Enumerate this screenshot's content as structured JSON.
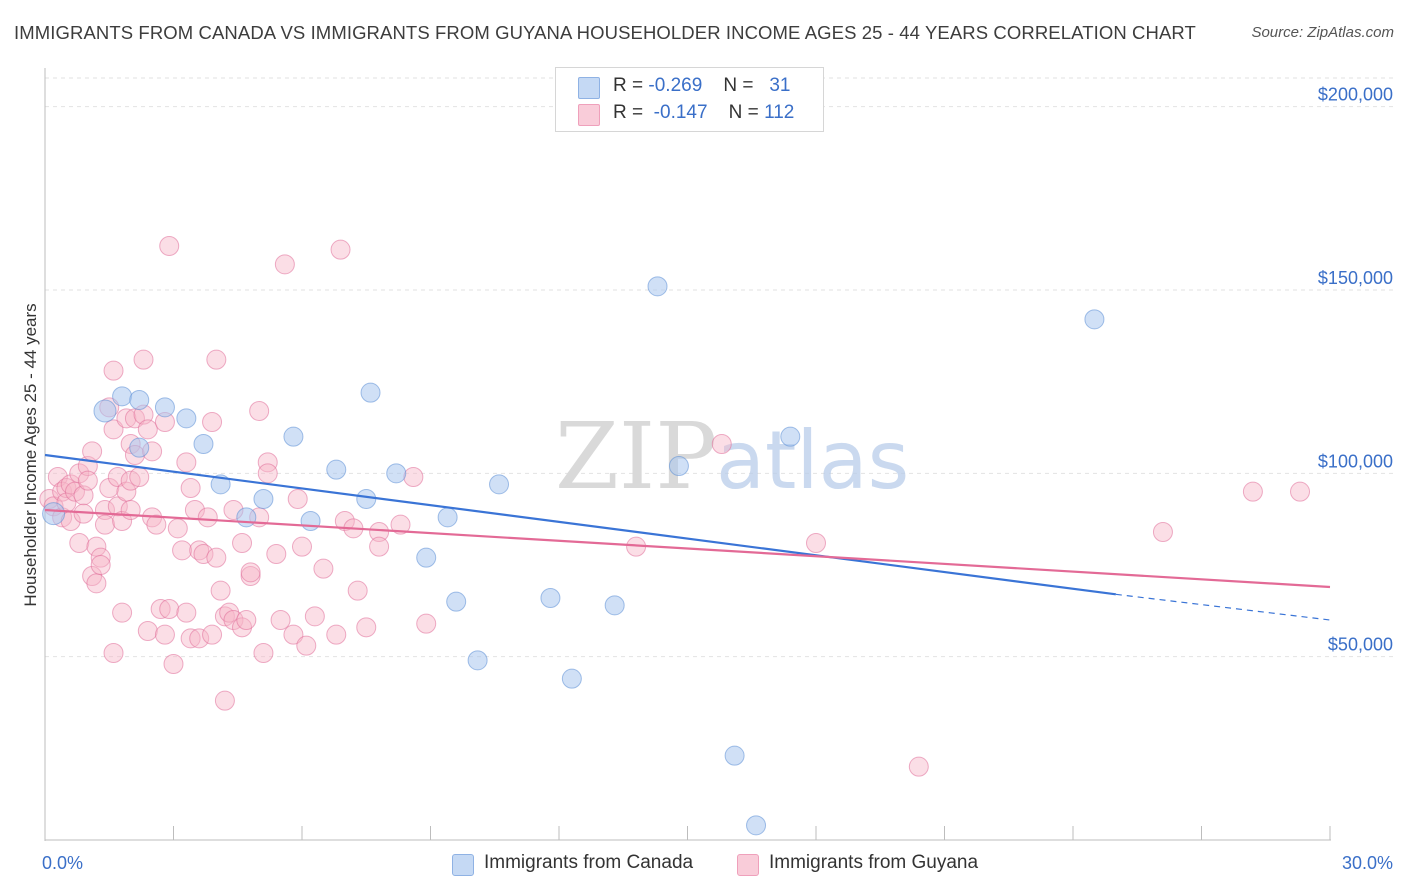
{
  "title": "IMMIGRANTS FROM CANADA VS IMMIGRANTS FROM GUYANA HOUSEHOLDER INCOME AGES 25 - 44 YEARS CORRELATION CHART",
  "source": "Source: ZipAtlas.com",
  "watermark": {
    "zip": "ZIP",
    "atlas": "atlas"
  },
  "legend": {
    "rows": [
      {
        "r_label": "R =",
        "r_value": "-0.269",
        "n_label": "N =",
        "n_value": "31",
        "color": "#a9c6ef"
      },
      {
        "r_label": "R =",
        "r_value": "-0.147",
        "n_label": "N =",
        "n_value": "112",
        "color": "#f6b6c8"
      }
    ]
  },
  "bottom_legend": [
    {
      "label": "Immigrants from Canada",
      "color": "#a9c6ef"
    },
    {
      "label": "Immigrants from Guyana",
      "color": "#f6b6c8"
    }
  ],
  "chart_data": {
    "type": "scatter",
    "xlabel": "",
    "ylabel": "Householder Income Ages 25 - 44 years",
    "xlim": [
      0,
      30
    ],
    "ylim": [
      0,
      210000
    ],
    "x_tick_labels": [
      "0.0%",
      "30.0%"
    ],
    "y_ticks": [
      50000,
      100000,
      150000,
      200000
    ],
    "y_tick_labels": [
      "$50,000",
      "$100,000",
      "$150,000",
      "$200,000"
    ],
    "grid": "horizontal dashed",
    "series": [
      {
        "name": "Immigrants from Canada",
        "color": "#5b8ed6",
        "fill": "#a9c6ef",
        "points": [
          [
            0.2,
            89000
          ],
          [
            1.4,
            117000
          ],
          [
            1.8,
            121000
          ],
          [
            2.2,
            120000
          ],
          [
            2.2,
            107000
          ],
          [
            2.8,
            118000
          ],
          [
            3.3,
            115000
          ],
          [
            3.7,
            108000
          ],
          [
            4.1,
            97000
          ],
          [
            4.7,
            88000
          ],
          [
            5.1,
            93000
          ],
          [
            5.8,
            110000
          ],
          [
            6.2,
            87000
          ],
          [
            6.8,
            101000
          ],
          [
            7.5,
            93000
          ],
          [
            7.6,
            122000
          ],
          [
            8.2,
            100000
          ],
          [
            8.9,
            77000
          ],
          [
            9.4,
            88000
          ],
          [
            9.6,
            65000
          ],
          [
            10.1,
            49000
          ],
          [
            10.6,
            97000
          ],
          [
            11.8,
            66000
          ],
          [
            12.3,
            44000
          ],
          [
            13.3,
            64000
          ],
          [
            14.3,
            151000
          ],
          [
            14.8,
            102000
          ],
          [
            16.1,
            23000
          ],
          [
            16.6,
            4000
          ],
          [
            17.4,
            110000
          ],
          [
            24.5,
            142000
          ]
        ],
        "trend": {
          "x": [
            0,
            25,
            30
          ],
          "y": [
            105000,
            67000,
            60000
          ],
          "solid_until": 25
        }
      },
      {
        "name": "Immigrants from Guyana",
        "color": "#e06e99",
        "fill": "#f6b6c8",
        "points": [
          [
            0.1,
            93000
          ],
          [
            0.2,
            91000
          ],
          [
            0.3,
            99000
          ],
          [
            0.4,
            95000
          ],
          [
            0.4,
            88000
          ],
          [
            0.5,
            96000
          ],
          [
            0.5,
            92000
          ],
          [
            0.6,
            97000
          ],
          [
            0.6,
            87000
          ],
          [
            0.7,
            95000
          ],
          [
            0.8,
            81000
          ],
          [
            0.8,
            100000
          ],
          [
            0.9,
            94000
          ],
          [
            0.9,
            89000
          ],
          [
            1.0,
            102000
          ],
          [
            1.0,
            98000
          ],
          [
            1.1,
            106000
          ],
          [
            1.1,
            72000
          ],
          [
            1.2,
            80000
          ],
          [
            1.2,
            70000
          ],
          [
            1.3,
            77000
          ],
          [
            1.3,
            75000
          ],
          [
            1.4,
            90000
          ],
          [
            1.4,
            86000
          ],
          [
            1.5,
            96000
          ],
          [
            1.5,
            118000
          ],
          [
            1.6,
            112000
          ],
          [
            1.6,
            128000
          ],
          [
            1.6,
            51000
          ],
          [
            1.7,
            91000
          ],
          [
            1.7,
            99000
          ],
          [
            1.8,
            87000
          ],
          [
            1.8,
            62000
          ],
          [
            1.9,
            115000
          ],
          [
            1.9,
            95000
          ],
          [
            2.0,
            108000
          ],
          [
            2.0,
            98000
          ],
          [
            2.0,
            90000
          ],
          [
            2.1,
            105000
          ],
          [
            2.1,
            115000
          ],
          [
            2.2,
            99000
          ],
          [
            2.3,
            131000
          ],
          [
            2.3,
            116000
          ],
          [
            2.4,
            112000
          ],
          [
            2.4,
            57000
          ],
          [
            2.5,
            106000
          ],
          [
            2.5,
            88000
          ],
          [
            2.6,
            86000
          ],
          [
            2.7,
            63000
          ],
          [
            2.8,
            114000
          ],
          [
            2.8,
            56000
          ],
          [
            2.9,
            162000
          ],
          [
            2.9,
            63000
          ],
          [
            3.0,
            48000
          ],
          [
            3.1,
            85000
          ],
          [
            3.2,
            79000
          ],
          [
            3.3,
            62000
          ],
          [
            3.3,
            103000
          ],
          [
            3.4,
            96000
          ],
          [
            3.4,
            55000
          ],
          [
            3.5,
            90000
          ],
          [
            3.6,
            79000
          ],
          [
            3.6,
            55000
          ],
          [
            3.7,
            78000
          ],
          [
            3.8,
            88000
          ],
          [
            3.9,
            114000
          ],
          [
            3.9,
            56000
          ],
          [
            4.0,
            131000
          ],
          [
            4.0,
            77000
          ],
          [
            4.1,
            68000
          ],
          [
            4.2,
            61000
          ],
          [
            4.2,
            38000
          ],
          [
            4.3,
            62000
          ],
          [
            4.4,
            90000
          ],
          [
            4.4,
            60000
          ],
          [
            4.6,
            58000
          ],
          [
            4.6,
            81000
          ],
          [
            4.7,
            60000
          ],
          [
            4.8,
            72000
          ],
          [
            4.8,
            73000
          ],
          [
            5.0,
            117000
          ],
          [
            5.0,
            88000
          ],
          [
            5.1,
            51000
          ],
          [
            5.2,
            103000
          ],
          [
            5.2,
            100000
          ],
          [
            5.4,
            78000
          ],
          [
            5.5,
            60000
          ],
          [
            5.6,
            157000
          ],
          [
            5.8,
            56000
          ],
          [
            5.9,
            93000
          ],
          [
            6.0,
            80000
          ],
          [
            6.1,
            53000
          ],
          [
            6.3,
            61000
          ],
          [
            6.5,
            74000
          ],
          [
            6.8,
            56000
          ],
          [
            6.9,
            161000
          ],
          [
            7.0,
            87000
          ],
          [
            7.2,
            85000
          ],
          [
            7.3,
            68000
          ],
          [
            7.5,
            58000
          ],
          [
            7.8,
            84000
          ],
          [
            7.8,
            80000
          ],
          [
            8.3,
            86000
          ],
          [
            8.6,
            99000
          ],
          [
            8.9,
            59000
          ],
          [
            13.8,
            80000
          ],
          [
            15.8,
            108000
          ],
          [
            18.0,
            81000
          ],
          [
            20.4,
            20000
          ],
          [
            26.1,
            84000
          ],
          [
            28.2,
            95000
          ],
          [
            29.3,
            95000
          ]
        ],
        "trend": {
          "x": [
            0,
            30
          ],
          "y": [
            90000,
            69000
          ]
        }
      }
    ]
  }
}
